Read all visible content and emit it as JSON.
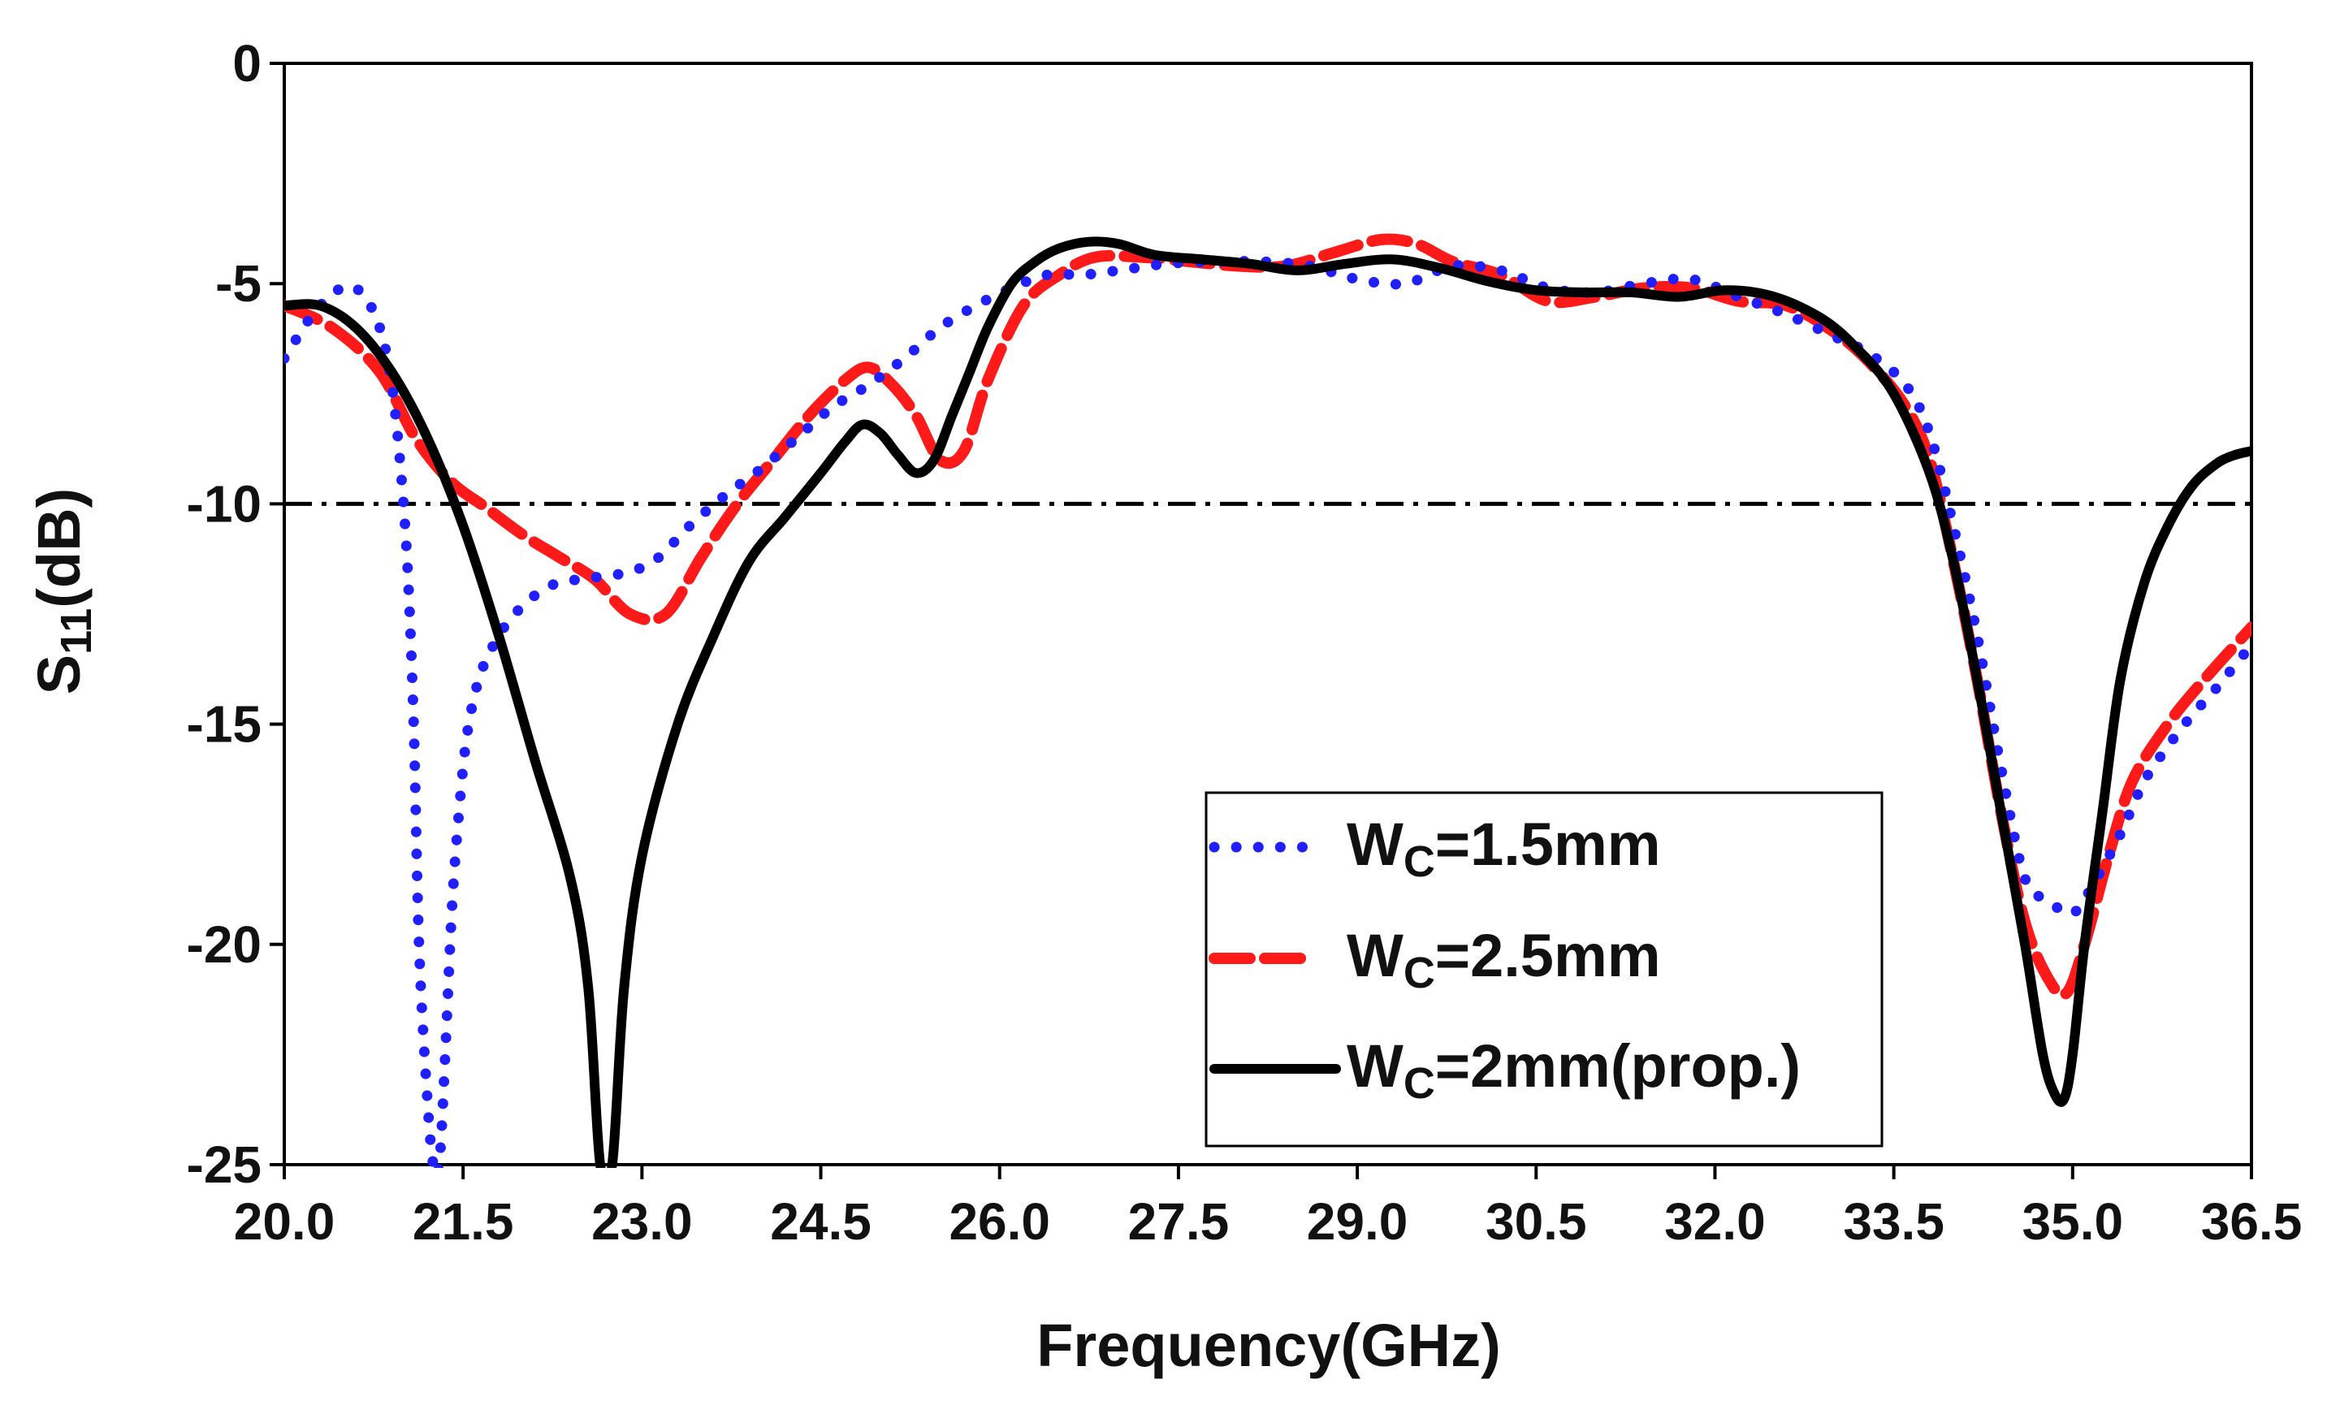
{
  "chart_data": {
    "type": "line",
    "title": "",
    "xlabel": "Frequency(GHz)",
    "ylabel_main": "S",
    "ylabel_sub": "11",
    "ylabel_unit": "(dB)",
    "xlim": [
      20.0,
      36.5
    ],
    "ylim": [
      -25,
      0
    ],
    "xticks": [
      "20.0",
      "21.5",
      "23.0",
      "24.5",
      "26.0",
      "27.5",
      "29.0",
      "30.5",
      "32.0",
      "33.5",
      "35.0",
      "36.5"
    ],
    "yticks": [
      "0",
      "-5",
      "-10",
      "-15",
      "-20",
      "-25"
    ],
    "grid": false,
    "legend_position": "lower-right",
    "reference_line": {
      "y": -10,
      "style": "dash-dot",
      "color": "#000000"
    },
    "series": [
      {
        "name": "WC=1.5mm",
        "label_main": "W",
        "label_sub": "C",
        "label_rest": "=1.5mm",
        "color": "#1f1fff",
        "style": "dotted",
        "x": [
          20.0,
          20.3,
          20.6,
          20.85,
          21.0,
          21.08,
          21.13,
          21.2,
          21.25,
          21.3,
          21.35,
          21.4,
          21.45,
          21.52,
          21.6,
          21.7,
          21.9,
          22.2,
          22.5,
          22.8,
          23.1,
          23.4,
          23.7,
          24.0,
          24.3,
          24.6,
          24.9,
          25.2,
          25.5,
          25.8,
          26.1,
          26.4,
          26.7,
          27.0,
          27.4,
          27.8,
          28.2,
          28.6,
          29.0,
          29.4,
          29.8,
          30.2,
          30.6,
          31.0,
          31.4,
          31.8,
          32.2,
          32.6,
          33.0,
          33.3,
          33.6,
          33.8,
          34.0,
          34.2,
          34.4,
          34.6,
          34.8,
          35.0,
          35.2,
          35.4,
          35.6,
          35.8,
          36.0,
          36.2,
          36.5
        ],
        "values": [
          -6.7,
          -5.5,
          -5.1,
          -6.5,
          -10.0,
          -14.5,
          -20.0,
          -23.5,
          -25.0,
          -25.0,
          -22.5,
          -19.5,
          -17.5,
          -15.5,
          -14.3,
          -13.5,
          -12.6,
          -11.9,
          -11.7,
          -11.6,
          -11.3,
          -10.5,
          -9.8,
          -9.2,
          -8.5,
          -7.8,
          -7.3,
          -6.7,
          -6.0,
          -5.5,
          -5.1,
          -4.8,
          -4.8,
          -4.7,
          -4.55,
          -4.5,
          -4.5,
          -4.6,
          -4.9,
          -5.0,
          -4.6,
          -4.7,
          -5.1,
          -5.2,
          -5.0,
          -4.9,
          -5.3,
          -5.7,
          -6.2,
          -6.6,
          -7.3,
          -8.4,
          -10.5,
          -13.0,
          -16.0,
          -18.5,
          -19.0,
          -19.3,
          -18.5,
          -17.5,
          -16.3,
          -15.5,
          -14.8,
          -14.2,
          -13.2
        ]
      },
      {
        "name": "WC=2.5mm",
        "label_main": "W",
        "label_sub": "C",
        "label_rest": "=2.5mm",
        "color": "#ff1a1a",
        "style": "dashed",
        "x": [
          20.0,
          20.4,
          20.8,
          21.1,
          21.4,
          21.7,
          22.0,
          22.3,
          22.6,
          22.9,
          23.2,
          23.5,
          23.8,
          24.1,
          24.4,
          24.7,
          24.9,
          25.1,
          25.3,
          25.5,
          25.7,
          25.9,
          26.2,
          26.5,
          26.8,
          27.2,
          27.6,
          28.0,
          28.4,
          28.8,
          29.2,
          29.5,
          29.8,
          30.2,
          30.6,
          31.0,
          31.4,
          31.8,
          32.2,
          32.6,
          33.0,
          33.3,
          33.6,
          33.8,
          34.0,
          34.2,
          34.4,
          34.6,
          34.8,
          34.95,
          35.1,
          35.3,
          35.5,
          35.8,
          36.1,
          36.5
        ],
        "values": [
          -5.5,
          -6.0,
          -7.0,
          -8.5,
          -9.5,
          -10.1,
          -10.7,
          -11.2,
          -11.7,
          -12.5,
          -12.5,
          -11.2,
          -10.0,
          -9.0,
          -8.0,
          -7.2,
          -6.9,
          -7.3,
          -8.0,
          -9.0,
          -8.8,
          -7.2,
          -5.5,
          -4.8,
          -4.4,
          -4.4,
          -4.5,
          -4.6,
          -4.6,
          -4.3,
          -4.0,
          -4.1,
          -4.5,
          -4.8,
          -5.4,
          -5.3,
          -5.1,
          -5.1,
          -5.4,
          -5.5,
          -6.1,
          -6.8,
          -7.8,
          -9.0,
          -11.3,
          -14.0,
          -17.0,
          -19.5,
          -20.8,
          -21.1,
          -20.0,
          -18.0,
          -16.3,
          -15.0,
          -14.0,
          -12.8
        ]
      },
      {
        "name": "WC=2mm(prop.)",
        "label_main": "W",
        "label_sub": "C",
        "label_rest": "=2mm(prop.)",
        "color": "#000000",
        "style": "solid",
        "x": [
          20.0,
          20.3,
          20.6,
          20.9,
          21.2,
          21.5,
          21.8,
          22.1,
          22.4,
          22.55,
          22.65,
          22.75,
          22.85,
          23.0,
          23.3,
          23.6,
          23.9,
          24.2,
          24.5,
          24.7,
          24.85,
          25.0,
          25.15,
          25.3,
          25.45,
          25.6,
          25.75,
          25.9,
          26.1,
          26.3,
          26.5,
          26.75,
          27.0,
          27.3,
          27.7,
          28.1,
          28.5,
          28.9,
          29.3,
          29.7,
          30.1,
          30.5,
          30.9,
          31.3,
          31.7,
          32.1,
          32.5,
          32.9,
          33.2,
          33.5,
          33.8,
          34.0,
          34.2,
          34.4,
          34.6,
          34.75,
          34.85,
          34.93,
          35.0,
          35.1,
          35.25,
          35.4,
          35.6,
          35.8,
          36.0,
          36.2,
          36.35,
          36.5
        ],
        "values": [
          -5.5,
          -5.5,
          -6.0,
          -7.0,
          -8.5,
          -10.5,
          -13.0,
          -15.8,
          -18.5,
          -21.0,
          -25.0,
          -25.0,
          -21.0,
          -18.0,
          -15.0,
          -13.0,
          -11.3,
          -10.3,
          -9.3,
          -8.6,
          -8.2,
          -8.4,
          -8.9,
          -9.3,
          -9.0,
          -8.0,
          -7.0,
          -6.0,
          -5.0,
          -4.5,
          -4.2,
          -4.05,
          -4.1,
          -4.35,
          -4.45,
          -4.55,
          -4.7,
          -4.55,
          -4.45,
          -4.65,
          -4.95,
          -5.15,
          -5.2,
          -5.2,
          -5.3,
          -5.15,
          -5.3,
          -5.8,
          -6.5,
          -7.5,
          -9.3,
          -11.3,
          -14.0,
          -17.0,
          -20.0,
          -22.5,
          -23.4,
          -23.5,
          -22.5,
          -20.0,
          -17.0,
          -14.0,
          -11.8,
          -10.5,
          -9.6,
          -9.1,
          -8.9,
          -8.8
        ]
      }
    ]
  }
}
